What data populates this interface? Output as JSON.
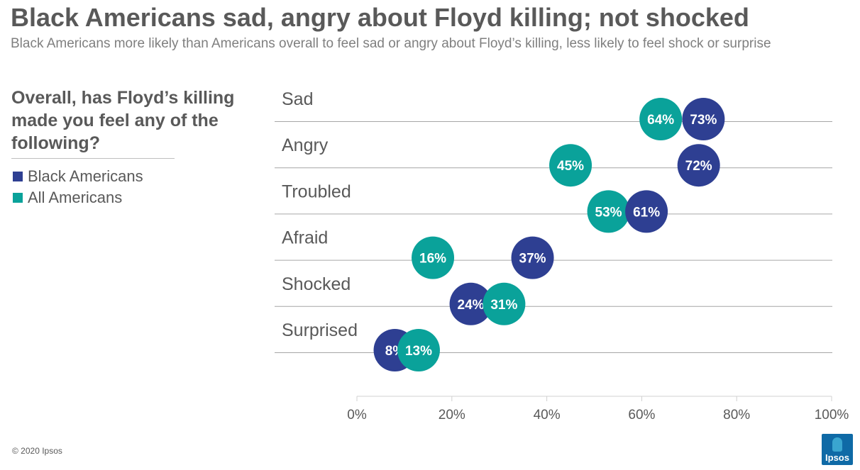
{
  "title": "Black Americans sad, angry about Floyd killing; not shocked",
  "subtitle": "Black Americans more likely than Americans overall to feel sad or angry about Floyd’s killing, less likely to feel shock or surprise",
  "question": "Overall, has Floyd’s killing made you feel any of the following?",
  "legend": {
    "black": "Black Americans",
    "all": "All Americans"
  },
  "copyright": "© 2020 Ipsos",
  "logo_text": "Ipsos",
  "colors": {
    "black": "#2e3f92",
    "all": "#0aa29a",
    "gridline": "#a6a6a6",
    "text": "#595959"
  },
  "chart_data": {
    "type": "dot",
    "categories": [
      "Sad",
      "Angry",
      "Troubled",
      "Afraid",
      "Shocked",
      "Surprised"
    ],
    "series": [
      {
        "name": "All Americans",
        "key": "all",
        "values": [
          64,
          45,
          53,
          16,
          31,
          13
        ]
      },
      {
        "name": "Black Americans",
        "key": "black",
        "values": [
          73,
          72,
          61,
          37,
          24,
          8
        ]
      }
    ],
    "xlim": [
      0,
      100
    ],
    "xticks": [
      0,
      20,
      40,
      60,
      80,
      100
    ],
    "value_suffix": "%",
    "tick_suffix": "%"
  }
}
